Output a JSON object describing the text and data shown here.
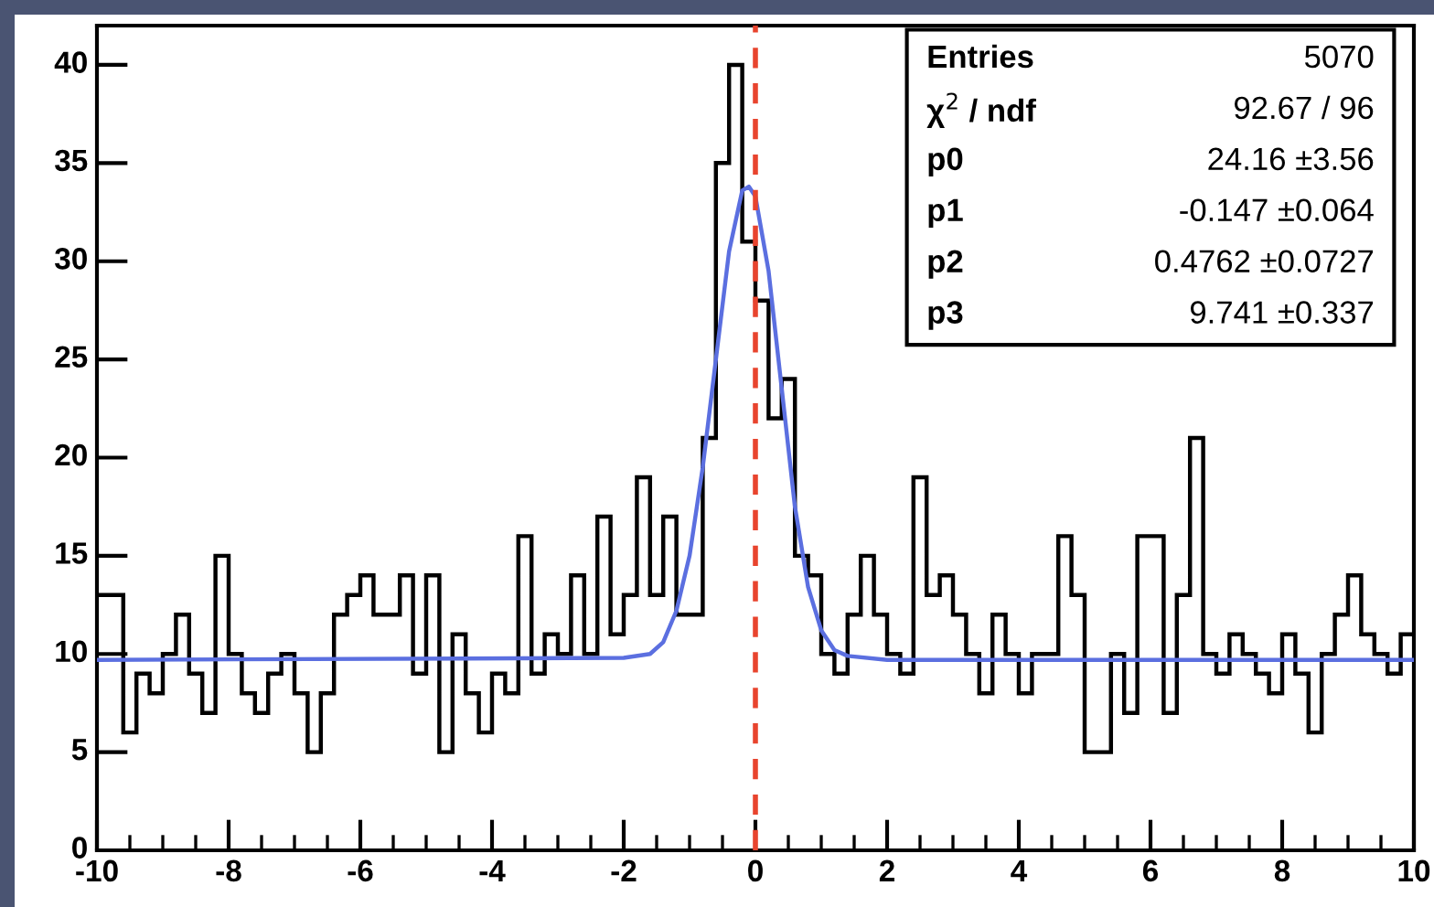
{
  "chart_data": {
    "type": "histogram",
    "bins": [
      -10,
      -9.8,
      -9.6,
      -9.4,
      -9.2,
      -9,
      -8.8,
      -8.6,
      -8.4,
      -8.2,
      -8,
      -7.8,
      -7.6,
      -7.4,
      -7.2,
      -7,
      -6.8,
      -6.6,
      -6.4,
      -6.2,
      -6,
      -5.8,
      -5.6,
      -5.4,
      -5.2,
      -5,
      -4.8,
      -4.6,
      -4.4,
      -4.2,
      -4,
      -3.8,
      -3.6,
      -3.4,
      -3.2,
      -3,
      -2.8,
      -2.6,
      -2.4,
      -2.2,
      -2,
      -1.8,
      -1.6,
      -1.4,
      -1.2,
      -1,
      -0.8,
      -0.6,
      -0.4,
      -0.2,
      0,
      0.2,
      0.4,
      0.6,
      0.8,
      1,
      1.2,
      1.4,
      1.6,
      1.8,
      2,
      2.2,
      2.4,
      2.6,
      2.8,
      3,
      3.2,
      3.4,
      3.6,
      3.8,
      4,
      4.2,
      4.4,
      4.6,
      4.8,
      5,
      5.2,
      5.4,
      5.6,
      5.8,
      6,
      6.2,
      6.4,
      6.6,
      6.8,
      7,
      7.2,
      7.4,
      7.6,
      7.8,
      8,
      8.2,
      8.4,
      8.6,
      8.8,
      9,
      9.2,
      9.4,
      9.6,
      9.8,
      10
    ],
    "values": [
      13,
      13,
      6,
      9,
      8,
      10,
      12,
      9,
      7,
      15,
      10,
      8,
      7,
      9,
      10,
      8,
      5,
      8,
      12,
      13,
      14,
      12,
      12,
      14,
      9,
      14,
      5,
      11,
      8,
      6,
      9,
      8,
      16,
      9,
      11,
      10,
      14,
      10,
      17,
      11,
      13,
      19,
      13,
      17,
      12,
      12,
      21,
      35,
      40,
      31,
      28,
      22,
      24,
      15,
      14,
      10,
      9,
      12,
      15,
      12,
      10,
      9,
      19,
      13,
      14,
      12,
      10,
      8,
      12,
      10,
      8,
      10,
      10,
      16,
      13,
      5,
      5,
      10,
      7,
      16,
      16,
      7,
      13,
      21,
      10,
      9,
      11,
      10,
      9,
      8,
      11,
      9,
      6,
      10,
      12,
      14,
      11,
      10,
      9,
      11
    ],
    "color": "#000000",
    "series": [
      {
        "type": "line",
        "color": "#5b6fe0",
        "x": [
          -10,
          -2,
          -1.6,
          -1.4,
          -1.2,
          -1,
          -0.8,
          -0.6,
          -0.4,
          -0.2,
          -0.1,
          0,
          0.2,
          0.4,
          0.6,
          0.8,
          1,
          1.2,
          1.4,
          2,
          10
        ],
        "values": [
          9.7,
          9.8,
          10,
          10.6,
          12.2,
          15,
          19.5,
          25,
          30.5,
          33.6,
          33.8,
          33.3,
          29.5,
          23.5,
          17.5,
          13.4,
          11.2,
          10.2,
          9.9,
          9.7,
          9.7
        ]
      }
    ],
    "ref_lines": [
      {
        "axis": "x",
        "value": 0,
        "color": "#e8442e",
        "line_style": "dashed"
      }
    ],
    "xlim": [
      -10,
      10
    ],
    "xticks": [
      -10,
      -8,
      -6,
      -4,
      -2,
      0,
      2,
      4,
      6,
      8,
      10
    ],
    "ylim": [
      0,
      42
    ],
    "yticks": [
      0,
      5,
      10,
      15,
      20,
      25,
      30,
      35,
      40
    ],
    "annotations": [
      "Entries",
      "5070",
      "χ$^{2}$ / ndf",
      "92.67 / 96",
      "p0",
      "24.16 ±3.56",
      "p1",
      "-0.147 ±0.064",
      "p2",
      "0.4762 ±0.0727",
      "p3",
      "9.741 ±0.337"
    ]
  }
}
